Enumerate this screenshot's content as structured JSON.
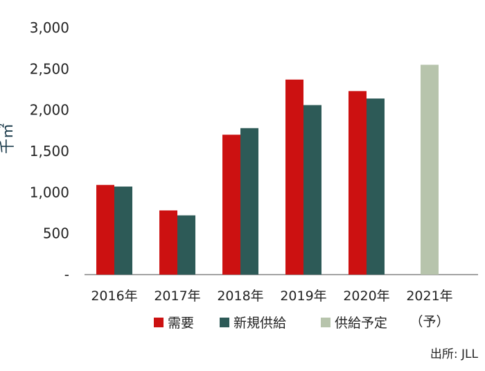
{
  "chart_data": {
    "type": "bar",
    "categories": [
      "2016年",
      "2017年",
      "2018年",
      "2019年",
      "2020年",
      "2021年"
    ],
    "category_sub": [
      "",
      "",
      "",
      "",
      "",
      "（予）"
    ],
    "series": [
      {
        "name": "需要",
        "color": "#cc1111",
        "values": [
          1090,
          780,
          1700,
          2370,
          2230,
          null
        ]
      },
      {
        "name": "新規供給",
        "color": "#2d5a57",
        "values": [
          1070,
          720,
          1780,
          2060,
          2140,
          null
        ]
      },
      {
        "name": "供給予定",
        "color": "#b7c4ac",
        "values": [
          null,
          null,
          null,
          null,
          null,
          2550
        ]
      }
    ],
    "yticks": [
      "-",
      "500",
      "1,000",
      "1,500",
      "2,000",
      "2,500",
      "3,000"
    ],
    "ylim": [
      0,
      3000
    ],
    "ylabel": "千㎡",
    "source": "出所: JLL"
  }
}
